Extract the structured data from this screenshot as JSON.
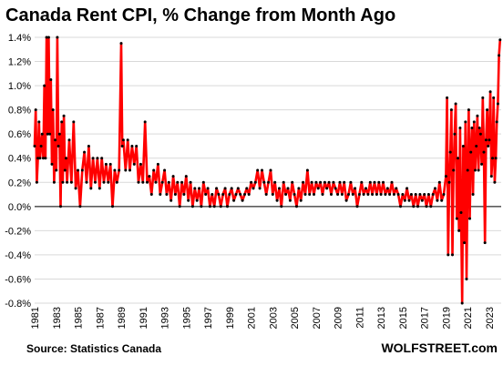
{
  "title": "Canada  Rent CPI, % Change from Month Ago",
  "source": "Source: Statistics Canada",
  "brand": "WOLFSTREET.com",
  "colors": {
    "line": "#ff0000",
    "marker": "#000000",
    "grid": "#d9d9d9",
    "zero": "#000000"
  },
  "chart_data": {
    "type": "line",
    "title": "Canada  Rent CPI, % Change from Month Ago",
    "xlabel": "",
    "ylabel": "",
    "xlim": [
      1981,
      2024.1
    ],
    "ylim": [
      -0.8,
      1.4
    ],
    "grid": true,
    "legend": "none",
    "x_ticks": [
      "1981",
      "1983",
      "1985",
      "1987",
      "1989",
      "1991",
      "1993",
      "1995",
      "1997",
      "1999",
      "2001",
      "2003",
      "2005",
      "2007",
      "2009",
      "2011",
      "2013",
      "2015",
      "2017",
      "2019",
      "2021",
      "2023"
    ],
    "y_ticks": [
      "1.4%",
      "1.2%",
      "1.0%",
      "0.8%",
      "0.6%",
      "0.4%",
      "0.2%",
      "0.0%",
      "-0.2%",
      "-0.4%",
      "-0.6%",
      "-0.8%"
    ],
    "series": [
      {
        "values": [
          [
            1981.0,
            0.5
          ],
          [
            1981.1,
            0.8
          ],
          [
            1981.2,
            0.2
          ],
          [
            1981.3,
            0.4
          ],
          [
            1981.4,
            0.7
          ],
          [
            1981.5,
            0.4
          ],
          [
            1981.6,
            0.5
          ],
          [
            1981.7,
            0.6
          ],
          [
            1981.8,
            0.4
          ],
          [
            1981.9,
            1.0
          ],
          [
            1982.0,
            0.4
          ],
          [
            1982.1,
            1.4
          ],
          [
            1982.2,
            0.6
          ],
          [
            1982.3,
            1.4
          ],
          [
            1982.4,
            0.6
          ],
          [
            1982.5,
            1.05
          ],
          [
            1982.6,
            0.35
          ],
          [
            1982.7,
            0.8
          ],
          [
            1982.8,
            0.2
          ],
          [
            1982.9,
            0.55
          ],
          [
            1983.0,
            0.3
          ],
          [
            1983.1,
            1.4
          ],
          [
            1983.2,
            0.5
          ],
          [
            1983.3,
            0.6
          ],
          [
            1983.4,
            0.0
          ],
          [
            1983.5,
            0.7
          ],
          [
            1983.6,
            0.2
          ],
          [
            1983.7,
            0.75
          ],
          [
            1983.8,
            0.3
          ],
          [
            1983.9,
            0.4
          ],
          [
            1984.0,
            0.2
          ],
          [
            1984.2,
            0.55
          ],
          [
            1984.4,
            0.2
          ],
          [
            1984.6,
            0.7
          ],
          [
            1984.8,
            0.15
          ],
          [
            1985.0,
            0.3
          ],
          [
            1985.2,
            0.0
          ],
          [
            1985.4,
            0.3
          ],
          [
            1985.6,
            0.45
          ],
          [
            1985.8,
            0.2
          ],
          [
            1986.0,
            0.5
          ],
          [
            1986.2,
            0.15
          ],
          [
            1986.4,
            0.4
          ],
          [
            1986.6,
            0.2
          ],
          [
            1986.8,
            0.4
          ],
          [
            1987.0,
            0.15
          ],
          [
            1987.2,
            0.4
          ],
          [
            1987.4,
            0.2
          ],
          [
            1987.6,
            0.35
          ],
          [
            1987.8,
            0.2
          ],
          [
            1988.0,
            0.35
          ],
          [
            1988.2,
            0.0
          ],
          [
            1988.4,
            0.3
          ],
          [
            1988.6,
            0.2
          ],
          [
            1988.8,
            0.3
          ],
          [
            1989.0,
            1.35
          ],
          [
            1989.1,
            0.5
          ],
          [
            1989.2,
            0.55
          ],
          [
            1989.4,
            0.3
          ],
          [
            1989.6,
            0.55
          ],
          [
            1989.8,
            0.3
          ],
          [
            1990.0,
            0.5
          ],
          [
            1990.2,
            0.35
          ],
          [
            1990.4,
            0.5
          ],
          [
            1990.6,
            0.2
          ],
          [
            1990.8,
            0.35
          ],
          [
            1991.0,
            0.2
          ],
          [
            1991.2,
            0.7
          ],
          [
            1991.4,
            0.2
          ],
          [
            1991.6,
            0.25
          ],
          [
            1991.8,
            0.1
          ],
          [
            1992.0,
            0.3
          ],
          [
            1992.2,
            0.2
          ],
          [
            1992.4,
            0.35
          ],
          [
            1992.6,
            0.1
          ],
          [
            1992.8,
            0.2
          ],
          [
            1993.0,
            0.3
          ],
          [
            1993.2,
            0.1
          ],
          [
            1993.4,
            0.2
          ],
          [
            1993.6,
            0.05
          ],
          [
            1993.8,
            0.25
          ],
          [
            1994.0,
            0.1
          ],
          [
            1994.2,
            0.2
          ],
          [
            1994.4,
            0.0
          ],
          [
            1994.6,
            0.2
          ],
          [
            1994.8,
            0.1
          ],
          [
            1995.0,
            0.25
          ],
          [
            1995.2,
            0.05
          ],
          [
            1995.4,
            0.2
          ],
          [
            1995.6,
            0.0
          ],
          [
            1995.8,
            0.15
          ],
          [
            1996.0,
            0.05
          ],
          [
            1996.2,
            0.15
          ],
          [
            1996.4,
            0.0
          ],
          [
            1996.6,
            0.2
          ],
          [
            1996.8,
            0.1
          ],
          [
            1997.0,
            0.15
          ],
          [
            1997.2,
            0.0
          ],
          [
            1997.4,
            0.1
          ],
          [
            1997.6,
            0.0
          ],
          [
            1997.8,
            0.15
          ],
          [
            1998.0,
            0.1
          ],
          [
            1998.2,
            0.0
          ],
          [
            1998.4,
            0.1
          ],
          [
            1998.6,
            0.15
          ],
          [
            1998.8,
            0.0
          ],
          [
            1999.0,
            0.1
          ],
          [
            1999.2,
            0.15
          ],
          [
            1999.4,
            0.05
          ],
          [
            1999.6,
            0.1
          ],
          [
            1999.8,
            0.15
          ],
          [
            2000.0,
            0.1
          ],
          [
            2000.2,
            0.05
          ],
          [
            2000.4,
            0.1
          ],
          [
            2000.6,
            0.15
          ],
          [
            2000.8,
            0.1
          ],
          [
            2001.0,
            0.2
          ],
          [
            2001.2,
            0.15
          ],
          [
            2001.4,
            0.2
          ],
          [
            2001.6,
            0.3
          ],
          [
            2001.8,
            0.15
          ],
          [
            2002.0,
            0.3
          ],
          [
            2002.2,
            0.2
          ],
          [
            2002.4,
            0.1
          ],
          [
            2002.6,
            0.2
          ],
          [
            2002.8,
            0.3
          ],
          [
            2003.0,
            0.1
          ],
          [
            2003.2,
            0.2
          ],
          [
            2003.4,
            0.05
          ],
          [
            2003.6,
            0.15
          ],
          [
            2003.8,
            0.0
          ],
          [
            2004.0,
            0.2
          ],
          [
            2004.2,
            0.1
          ],
          [
            2004.4,
            0.15
          ],
          [
            2004.6,
            0.05
          ],
          [
            2004.8,
            0.2
          ],
          [
            2005.0,
            0.1
          ],
          [
            2005.2,
            0.0
          ],
          [
            2005.4,
            0.15
          ],
          [
            2005.6,
            0.05
          ],
          [
            2005.8,
            0.2
          ],
          [
            2006.0,
            0.1
          ],
          [
            2006.2,
            0.3
          ],
          [
            2006.4,
            0.1
          ],
          [
            2006.6,
            0.2
          ],
          [
            2006.8,
            0.1
          ],
          [
            2007.0,
            0.2
          ],
          [
            2007.2,
            0.15
          ],
          [
            2007.4,
            0.2
          ],
          [
            2007.6,
            0.1
          ],
          [
            2007.8,
            0.2
          ],
          [
            2008.0,
            0.15
          ],
          [
            2008.2,
            0.2
          ],
          [
            2008.4,
            0.1
          ],
          [
            2008.6,
            0.2
          ],
          [
            2008.8,
            0.15
          ],
          [
            2009.0,
            0.1
          ],
          [
            2009.2,
            0.2
          ],
          [
            2009.4,
            0.1
          ],
          [
            2009.6,
            0.2
          ],
          [
            2009.8,
            0.05
          ],
          [
            2010.0,
            0.1
          ],
          [
            2010.2,
            0.2
          ],
          [
            2010.4,
            0.1
          ],
          [
            2010.6,
            0.15
          ],
          [
            2010.8,
            0.0
          ],
          [
            2011.0,
            0.1
          ],
          [
            2011.2,
            0.2
          ],
          [
            2011.4,
            0.1
          ],
          [
            2011.6,
            0.15
          ],
          [
            2011.8,
            0.1
          ],
          [
            2012.0,
            0.2
          ],
          [
            2012.2,
            0.1
          ],
          [
            2012.4,
            0.2
          ],
          [
            2012.6,
            0.1
          ],
          [
            2012.8,
            0.2
          ],
          [
            2013.0,
            0.1
          ],
          [
            2013.2,
            0.2
          ],
          [
            2013.4,
            0.1
          ],
          [
            2013.6,
            0.15
          ],
          [
            2013.8,
            0.1
          ],
          [
            2014.0,
            0.2
          ],
          [
            2014.2,
            0.1
          ],
          [
            2014.4,
            0.15
          ],
          [
            2014.6,
            0.1
          ],
          [
            2014.8,
            0.0
          ],
          [
            2015.0,
            0.1
          ],
          [
            2015.2,
            0.05
          ],
          [
            2015.4,
            0.15
          ],
          [
            2015.6,
            0.05
          ],
          [
            2015.8,
            0.1
          ],
          [
            2016.0,
            0.0
          ],
          [
            2016.2,
            0.1
          ],
          [
            2016.4,
            0.0
          ],
          [
            2016.6,
            0.1
          ],
          [
            2016.8,
            0.05
          ],
          [
            2017.0,
            0.1
          ],
          [
            2017.2,
            0.0
          ],
          [
            2017.4,
            0.1
          ],
          [
            2017.6,
            0.0
          ],
          [
            2017.8,
            0.1
          ],
          [
            2018.0,
            0.15
          ],
          [
            2018.2,
            0.05
          ],
          [
            2018.4,
            0.2
          ],
          [
            2018.6,
            0.05
          ],
          [
            2018.8,
            0.1
          ],
          [
            2019.0,
            0.25
          ],
          [
            2019.1,
            0.9
          ],
          [
            2019.2,
            -0.4
          ],
          [
            2019.3,
            0.2
          ],
          [
            2019.4,
            0.45
          ],
          [
            2019.5,
            0.8
          ],
          [
            2019.6,
            -0.4
          ],
          [
            2019.7,
            0.3
          ],
          [
            2019.8,
            0.6
          ],
          [
            2019.9,
            0.85
          ],
          [
            2020.0,
            -0.1
          ],
          [
            2020.1,
            0.4
          ],
          [
            2020.2,
            -0.2
          ],
          [
            2020.3,
            0.65
          ],
          [
            2020.4,
            -0.05
          ],
          [
            2020.5,
            -0.8
          ],
          [
            2020.6,
            0.5
          ],
          [
            2020.7,
            -0.3
          ],
          [
            2020.8,
            0.7
          ],
          [
            2020.9,
            -0.6
          ],
          [
            2021.0,
            0.3
          ],
          [
            2021.1,
            0.8
          ],
          [
            2021.2,
            -0.1
          ],
          [
            2021.3,
            0.45
          ],
          [
            2021.4,
            0.65
          ],
          [
            2021.5,
            0.1
          ],
          [
            2021.6,
            0.7
          ],
          [
            2021.7,
            0.3
          ],
          [
            2021.8,
            0.5
          ],
          [
            2021.9,
            0.75
          ],
          [
            2022.0,
            0.3
          ],
          [
            2022.1,
            0.65
          ],
          [
            2022.2,
            0.6
          ],
          [
            2022.3,
            0.35
          ],
          [
            2022.4,
            0.9
          ],
          [
            2022.5,
            0.45
          ],
          [
            2022.6,
            -0.3
          ],
          [
            2022.7,
            0.55
          ],
          [
            2022.8,
            0.8
          ],
          [
            2022.9,
            0.5
          ],
          [
            2023.0,
            0.55
          ],
          [
            2023.1,
            0.95
          ],
          [
            2023.2,
            0.25
          ],
          [
            2023.3,
            0.4
          ],
          [
            2023.4,
            0.9
          ],
          [
            2023.5,
            0.2
          ],
          [
            2023.6,
            0.4
          ],
          [
            2023.7,
            0.7
          ],
          [
            2023.8,
            0.85
          ],
          [
            2023.9,
            1.25
          ],
          [
            2024.0,
            1.38
          ]
        ]
      }
    ]
  }
}
